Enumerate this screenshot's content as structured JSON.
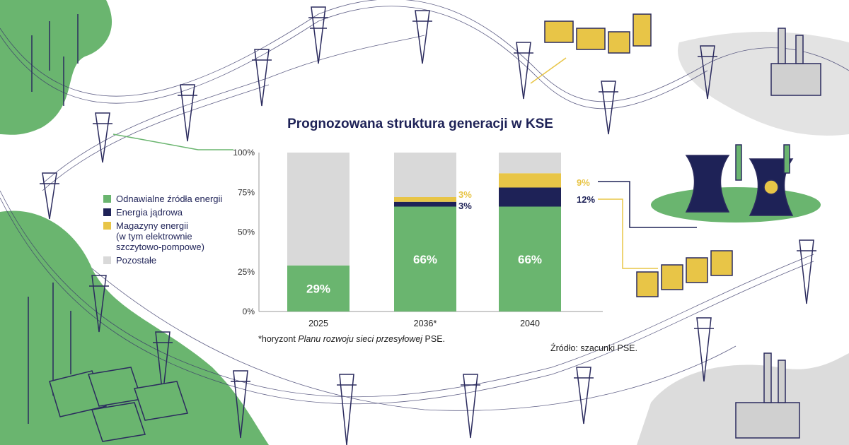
{
  "chart_data": {
    "type": "bar",
    "stacked": true,
    "title": "Prognozowana struktura generacji w KSE",
    "categories": [
      "2025",
      "2036*",
      "2040"
    ],
    "series": [
      {
        "name": "Odnawialne źródła energii",
        "color": "#6ab56f",
        "values": [
          29,
          66,
          66
        ],
        "labels": [
          "29%",
          "66%",
          "66%"
        ]
      },
      {
        "name": "Energia jądrowa",
        "color": "#1e2257",
        "values": [
          0,
          3,
          12
        ],
        "labels": [
          "",
          "3%",
          "12%"
        ]
      },
      {
        "name": "Magazyny energii (w tym elektrownie szczytowo-pompowe)",
        "color": "#e8c547",
        "values": [
          0,
          3,
          9
        ],
        "labels": [
          "",
          "3%",
          "9%"
        ]
      },
      {
        "name": "Pozostałe",
        "color": "#d9d9d9",
        "values": [
          71,
          28,
          13
        ],
        "labels": [
          "",
          "",
          ""
        ]
      }
    ],
    "legend_lines": [
      [
        "Odnawialne źródła energii"
      ],
      [
        "Energia jądrowa"
      ],
      [
        "Magazyny energii",
        "(w tym elektrownie",
        "szczytowo-pompowe)"
      ],
      [
        "Pozostałe"
      ]
    ],
    "yticks": [
      "0%",
      "25%",
      "50%",
      "75%",
      "100%"
    ],
    "ylim": [
      0,
      100
    ],
    "grid": false,
    "legend_position": "left",
    "xlabel": "",
    "ylabel": ""
  },
  "footnote": {
    "prefix": "*horyzont ",
    "italic": "Planu rozwoju sieci przesyłowej",
    "suffix": " PSE."
  },
  "source": "Źródło: szacunki PSE.",
  "colors": {
    "green": "#6ab56f",
    "navy": "#1e2257",
    "yellow": "#e8c547",
    "gray": "#d9d9d9",
    "lightgray": "#e3e3e3"
  }
}
